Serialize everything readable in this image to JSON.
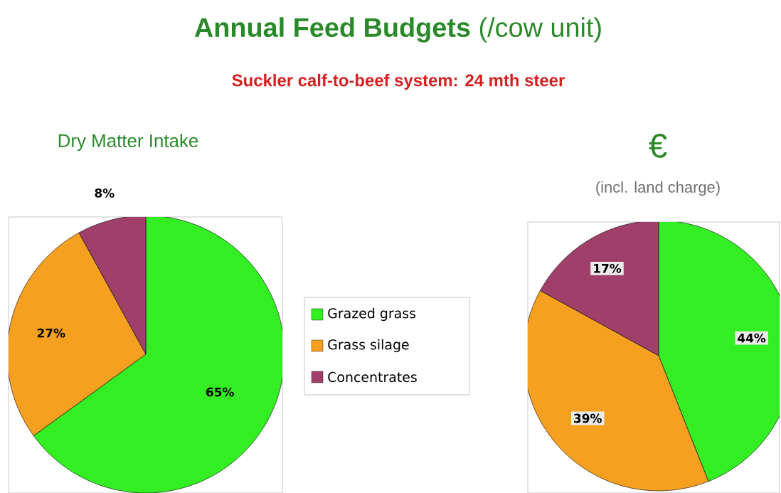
{
  "chart_data": [
    {
      "type": "other",
      "title": "**Annual Feed Budgets** (/cow unit)",
      "subtitle": "Suckler calf-to-beef system: 24 mth steer"
    },
    {
      "type": "pie",
      "title": "Dry Matter Intake",
      "categories": [
        "Grazed grass",
        "Grass silage",
        "Concentrates"
      ],
      "values": [
        65,
        27,
        8
      ],
      "colors": [
        "#33ee22",
        "#f5a020",
        "#a0406a"
      ],
      "value_labels": [
        "65%",
        "27%",
        "8%"
      ],
      "legend": "right"
    },
    {
      "type": "pie",
      "title": "€",
      "subtitle": "(incl. land charge)",
      "values": [
        44,
        39,
        17
      ],
      "colors": [
        "#33ee22",
        "#f5a020",
        "#a0406a"
      ],
      "value_labels": [
        "44%",
        "39%",
        "17%"
      ]
    }
  ]
}
